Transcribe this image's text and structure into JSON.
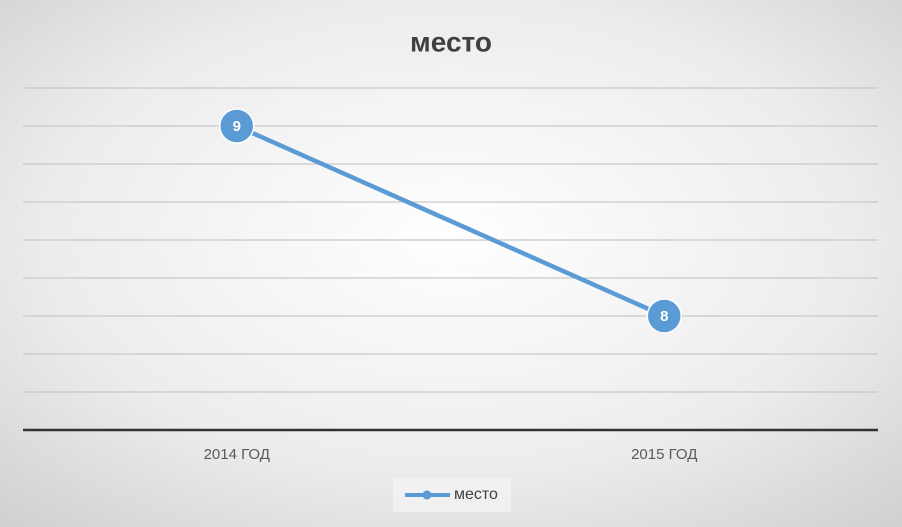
{
  "chart_data": {
    "type": "line",
    "title": "место",
    "categories": [
      "2014 ГОД",
      "2015 ГОД"
    ],
    "series": [
      {
        "name": "место",
        "color": "#5b9bd5",
        "values": [
          9,
          8
        ]
      }
    ],
    "ylim": [
      7.4,
      9.2
    ],
    "yticks": [
      7.4,
      7.6,
      7.8,
      8,
      8.2,
      8.4,
      8.6,
      8.8,
      9,
      9.2
    ],
    "grid": true,
    "legend": "bottom"
  }
}
